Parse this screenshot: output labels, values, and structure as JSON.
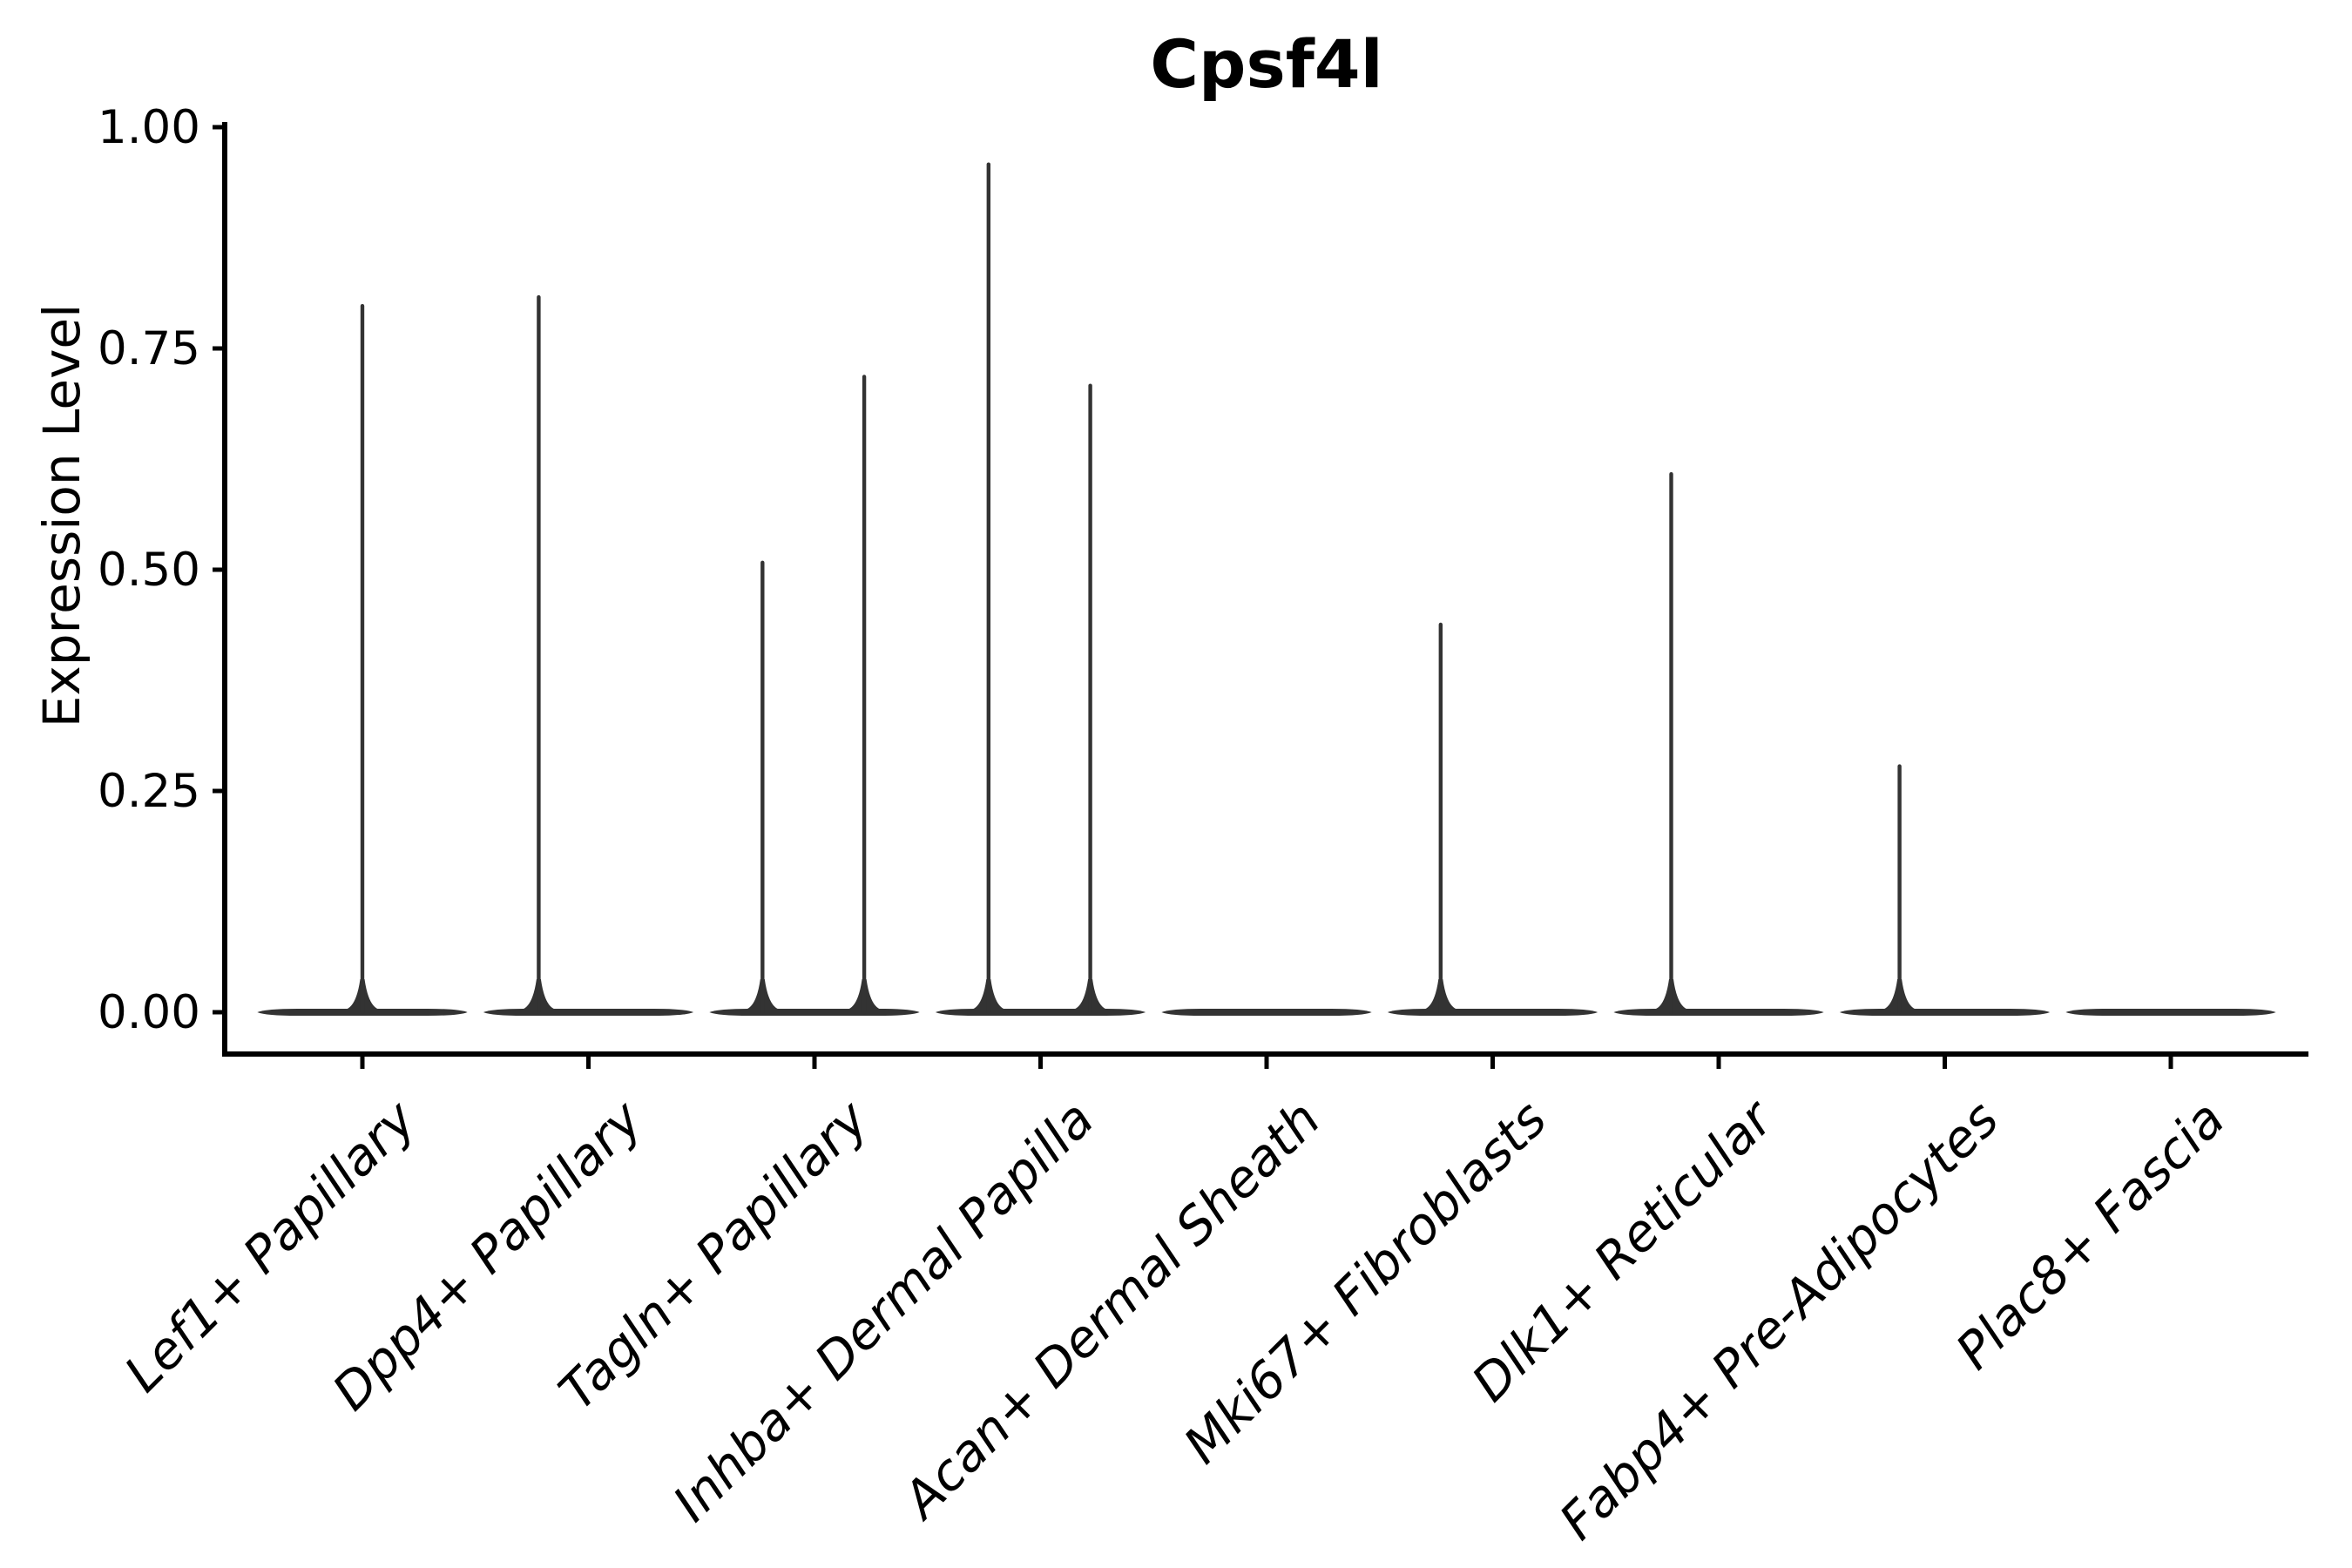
{
  "title": "Cpsf4l",
  "y_axis": {
    "label": "Expression Level",
    "tick_labels": [
      "0.00",
      "0.25",
      "0.50",
      "0.75",
      "1.00"
    ],
    "tick_values": [
      0,
      0.25,
      0.5,
      0.75,
      1.0
    ]
  },
  "colors": {
    "violin": "#333333",
    "axis": "#000000",
    "text": "#000000",
    "background": "#ffffff"
  },
  "chart_data": {
    "type": "violin",
    "title": "Cpsf4l",
    "xlabel": "",
    "ylabel": "Expression Level",
    "ylim": [
      0,
      1
    ],
    "yticks": [
      0,
      0.25,
      0.5,
      0.75,
      1.0
    ],
    "legend": "none",
    "grid": false,
    "categories": [
      "Lef1+ Papillary",
      "Dpp4+ Papillary",
      "Tagln+ Papillary",
      "Inhba+ Dermal Papilla",
      "Acan+ Dermal Sheath",
      "Mki67+ Fibroblasts",
      "Dlk1+ Reticular",
      "Fabp4+ Pre-Adipocytes",
      "Plac8+ Fascia"
    ],
    "violins": [
      {
        "category": "Lef1+ Papillary",
        "zero_density_bar": true,
        "spikes": [
          {
            "offset": 0.0,
            "max": 0.8
          }
        ]
      },
      {
        "category": "Dpp4+ Papillary",
        "zero_density_bar": true,
        "spikes": [
          {
            "offset": -0.22,
            "max": 0.81
          }
        ]
      },
      {
        "category": "Tagln+ Papillary",
        "zero_density_bar": true,
        "spikes": [
          {
            "offset": -0.23,
            "max": 0.51
          },
          {
            "offset": 0.22,
            "max": 0.72
          }
        ]
      },
      {
        "category": "Inhba+ Dermal Papilla",
        "zero_density_bar": true,
        "spikes": [
          {
            "offset": -0.23,
            "max": 0.96
          },
          {
            "offset": 0.22,
            "max": 0.71
          }
        ]
      },
      {
        "category": "Acan+ Dermal Sheath",
        "zero_density_bar": true,
        "spikes": []
      },
      {
        "category": "Mki67+ Fibroblasts",
        "zero_density_bar": true,
        "spikes": [
          {
            "offset": -0.23,
            "max": 0.44
          }
        ]
      },
      {
        "category": "Dlk1+ Reticular",
        "zero_density_bar": true,
        "spikes": [
          {
            "offset": -0.21,
            "max": 0.61
          }
        ]
      },
      {
        "category": "Fabp4+ Pre-Adipocytes",
        "zero_density_bar": true,
        "spikes": [
          {
            "offset": -0.2,
            "max": 0.28
          }
        ]
      },
      {
        "category": "Plac8+ Fascia",
        "zero_density_bar": true,
        "spikes": []
      }
    ],
    "zero_bar_halfwidth_frac": 0.465
  }
}
